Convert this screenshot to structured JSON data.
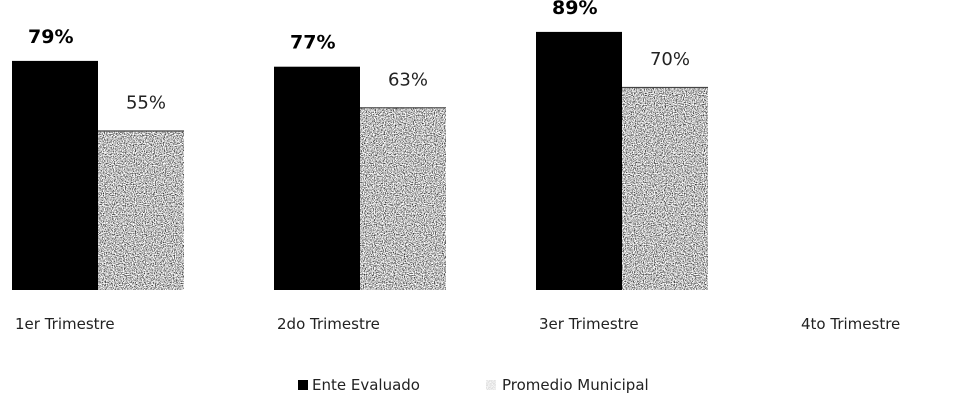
{
  "chart_data": {
    "type": "bar",
    "categories": [
      "1er Trimestre",
      "2do Trimestre",
      "3er Trimestre",
      "4to Trimestre"
    ],
    "series": [
      {
        "name": "Ente Evaluado",
        "values": [
          79,
          77,
          89,
          null
        ],
        "labels": [
          "79%",
          "77%",
          "89%",
          ""
        ],
        "color": "#000000"
      },
      {
        "name": "Promedio Municipal",
        "values": [
          55,
          63,
          70,
          null
        ],
        "labels": [
          "55%",
          "63%",
          "70%",
          ""
        ],
        "color": "#8a8a8a"
      }
    ],
    "ylim": [
      0,
      100
    ],
    "grid": false,
    "legend_position": "bottom"
  }
}
